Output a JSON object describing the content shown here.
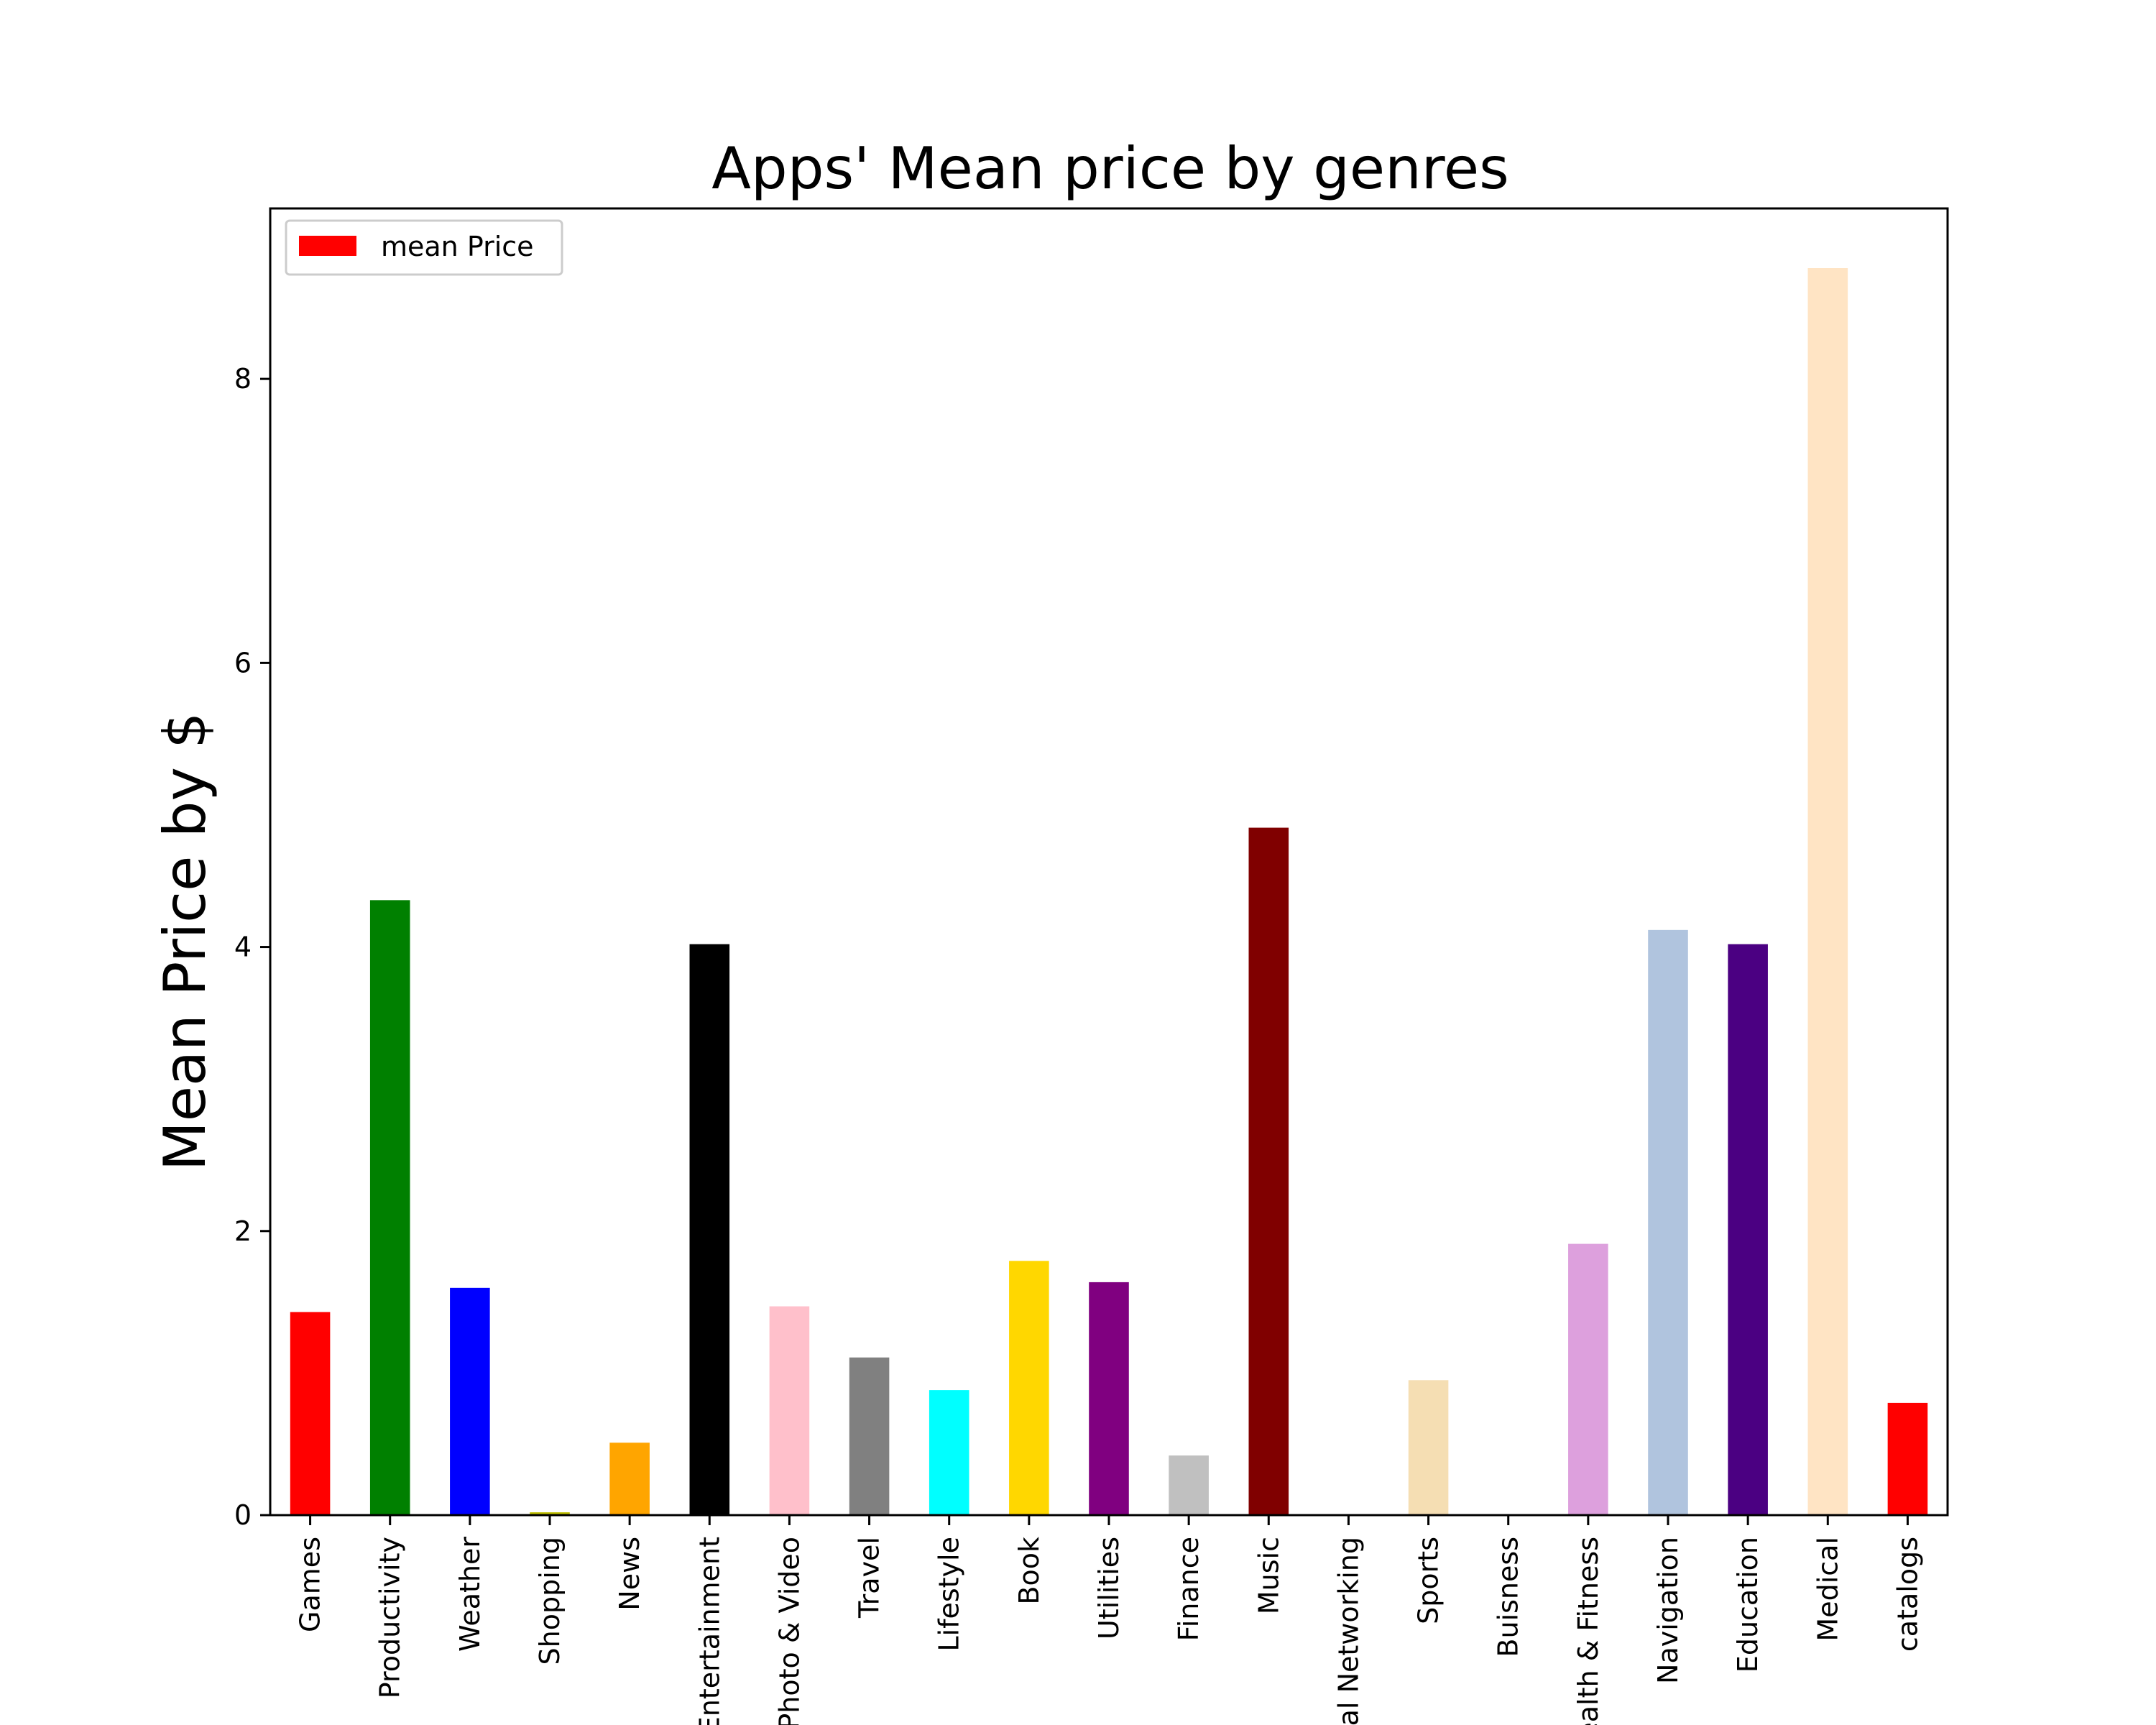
{
  "chart_data": {
    "type": "bar",
    "title": "Apps' Mean price by genres",
    "xlabel": "",
    "ylabel": "Mean Price by $",
    "categories": [
      "Games",
      "Productivity",
      "Weather",
      "Shopping",
      "News",
      "Entertainment",
      "Photo & Video",
      "Travel",
      "Lifestyle",
      "Book",
      "Utilities",
      "Finance",
      "Music",
      "Social Networking",
      "Sports",
      "Buisness",
      "Health & Fitness",
      "Navigation",
      "Education",
      "Medical",
      "catalogs"
    ],
    "series": [
      {
        "name": "mean Price",
        "values": [
          1.43,
          4.33,
          1.6,
          0.02,
          0.51,
          4.02,
          1.47,
          1.11,
          0.88,
          1.79,
          1.64,
          0.42,
          4.84,
          0.0,
          0.95,
          0.0,
          1.91,
          4.12,
          4.02,
          8.78,
          0.79
        ]
      }
    ],
    "colors": [
      "#ff0000",
      "#008000",
      "#0000ff",
      "#bfbf00",
      "#ffa500",
      "#000000",
      "#ffc0cb",
      "#808080",
      "#00ffff",
      "#ffd700",
      "#800080",
      "#c0c0c0",
      "#800000",
      "#00bfbf",
      "#f5deb3",
      "#808000",
      "#dda0dd",
      "#b0c4de",
      "#4b0082",
      "#ffe4c4",
      "#ff0000"
    ],
    "legend_color": "#ff0000",
    "ylim": [
      0,
      9.2
    ],
    "yticks": [
      0,
      2,
      4,
      6,
      8
    ],
    "legend_position": "top-left",
    "grid": false
  }
}
